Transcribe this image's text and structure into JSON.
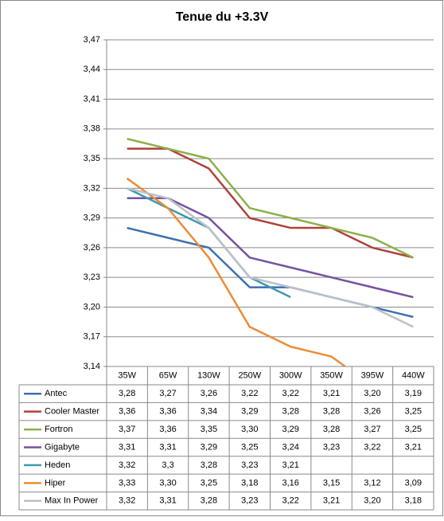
{
  "chart_data": {
    "type": "line",
    "title": "Tenue du +3.3V",
    "categories": [
      "35W",
      "65W",
      "130W",
      "250W",
      "300W",
      "350W",
      "395W",
      "440W"
    ],
    "ylim": [
      3.14,
      3.47
    ],
    "yticks": [
      {
        "value": 3.14,
        "label": "3,14"
      },
      {
        "value": 3.17,
        "label": "3,17"
      },
      {
        "value": 3.2,
        "label": "3,20"
      },
      {
        "value": 3.23,
        "label": "3,23"
      },
      {
        "value": 3.26,
        "label": "3,26"
      },
      {
        "value": 3.29,
        "label": "3,29"
      },
      {
        "value": 3.32,
        "label": "3,32"
      },
      {
        "value": 3.35,
        "label": "3,35"
      },
      {
        "value": 3.38,
        "label": "3,38"
      },
      {
        "value": 3.41,
        "label": "3,41"
      },
      {
        "value": 3.44,
        "label": "3,44"
      },
      {
        "value": 3.47,
        "label": "3,47"
      }
    ],
    "grid": true,
    "series": [
      {
        "name": "Antec",
        "color": "#3c6fb0",
        "values": [
          3.28,
          3.27,
          3.26,
          3.22,
          3.22,
          3.21,
          3.2,
          3.19
        ],
        "value_labels": [
          "3,28",
          "3,27",
          "3,26",
          "3,22",
          "3,22",
          "3,21",
          "3,20",
          "3,19"
        ]
      },
      {
        "name": "Cooler Master",
        "color": "#b0403c",
        "values": [
          3.36,
          3.36,
          3.34,
          3.29,
          3.28,
          3.28,
          3.26,
          3.25
        ],
        "value_labels": [
          "3,36",
          "3,36",
          "3,34",
          "3,29",
          "3,28",
          "3,28",
          "3,26",
          "3,25"
        ]
      },
      {
        "name": "Fortron",
        "color": "#8db04a",
        "values": [
          3.37,
          3.36,
          3.35,
          3.3,
          3.29,
          3.28,
          3.27,
          3.25
        ],
        "value_labels": [
          "3,37",
          "3,36",
          "3,35",
          "3,30",
          "3,29",
          "3,28",
          "3,27",
          "3,25"
        ]
      },
      {
        "name": "Gigabyte",
        "color": "#7652a0",
        "values": [
          3.31,
          3.31,
          3.29,
          3.25,
          3.24,
          3.23,
          3.22,
          3.21
        ],
        "value_labels": [
          "3,31",
          "3,31",
          "3,29",
          "3,25",
          "3,24",
          "3,23",
          "3,22",
          "3,21"
        ]
      },
      {
        "name": "Heden",
        "color": "#3c9ab0",
        "values": [
          3.32,
          3.3,
          3.28,
          3.23,
          3.21,
          null,
          null,
          null
        ],
        "value_labels": [
          "3,32",
          "3,3",
          "3,28",
          "3,23",
          "3,21",
          null,
          null,
          null
        ]
      },
      {
        "name": "Hiper",
        "color": "#ec8c35",
        "values": [
          3.33,
          3.3,
          3.25,
          3.18,
          3.16,
          3.15,
          3.12,
          3.09
        ],
        "value_labels": [
          "3,33",
          "3,30",
          "3,25",
          "3,18",
          "3,16",
          "3,15",
          "3,12",
          "3,09"
        ]
      },
      {
        "name": "Max In Power",
        "color": "#bcc0c8",
        "values": [
          3.32,
          3.31,
          3.28,
          3.23,
          3.22,
          3.21,
          3.2,
          3.18
        ],
        "value_labels": [
          "3,32",
          "3,31",
          "3,28",
          "3,23",
          "3,22",
          "3,21",
          "3,20",
          "3,18"
        ]
      }
    ]
  }
}
